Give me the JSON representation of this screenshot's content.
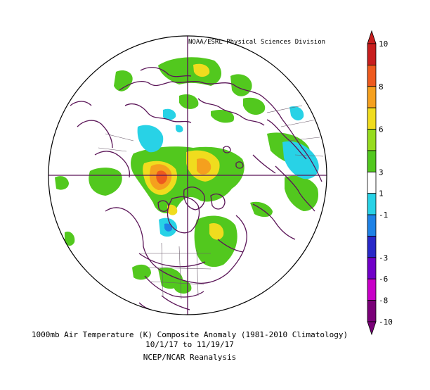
{
  "credit": "NOAA/ESRL Physical Sciences Division",
  "caption": {
    "line1": "1000mb Air Temperature (K) Composite Anomaly (1981-2010 Climatology)",
    "line2": "10/1/17  to 11/19/17",
    "line3": "NCEP/NCAR Reanalysis"
  },
  "colorbar": {
    "colors": [
      "#7a0078",
      "#c800c8",
      "#7000c8",
      "#2828c8",
      "#1e82e6",
      "#28d2e6",
      "#ffffff",
      "#52c81e",
      "#96dc1e",
      "#f0dc1e",
      "#f5a01e",
      "#ee5a1e",
      "#c81e1e"
    ],
    "tick_labels": [
      "10",
      "8",
      "6",
      "3",
      "1",
      "-1",
      "-3",
      "-6",
      "-8",
      "-10"
    ]
  },
  "colors": {
    "land_outline": "#5a1457",
    "positive_small": "#52c81e",
    "positive_medium": "#f0dc1e",
    "positive_large": "#f5a01e",
    "positive_peak": "#ee5a1e",
    "negative_small": "#28d2e6",
    "negative_medium": "#1e82e6"
  }
}
